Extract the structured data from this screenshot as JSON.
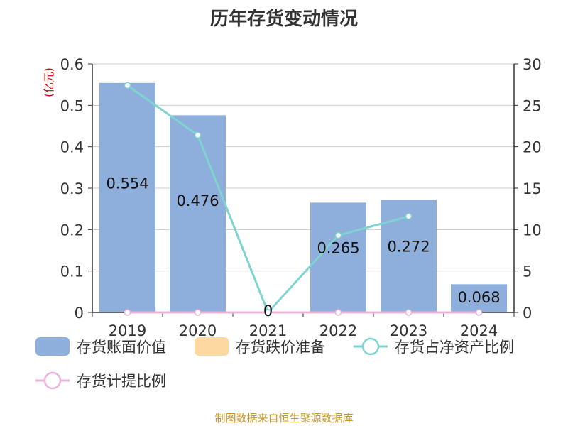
{
  "colors": {
    "bar": "#8eaedb",
    "provision": "#fdd8a0",
    "ratio_line": "#7fd3d0",
    "provision_ratio": "#e8b4dc",
    "unit_text": "#cc0000",
    "source_text": "#c8962e",
    "axis": "#333333",
    "grid": "#cccccc"
  },
  "chart_data": {
    "type": "bar",
    "title": "历年存货变动情况",
    "y_unit": "(亿元)",
    "categories": [
      "2019",
      "2020",
      "2021",
      "2022",
      "2023",
      "2024"
    ],
    "ylim_left": [
      0,
      0.6
    ],
    "yticks_left": [
      "0",
      "0.1",
      "0.2",
      "0.3",
      "0.4",
      "0.5",
      "0.6"
    ],
    "ylim_right": [
      0,
      30
    ],
    "yticks_right": [
      "0",
      "5",
      "10",
      "15",
      "20",
      "25",
      "30"
    ],
    "grid": true,
    "legend_position": "bottom",
    "series": [
      {
        "name": "存货账面价值",
        "kind": "bar",
        "axis": "left",
        "values": [
          0.554,
          0.476,
          0,
          0.265,
          0.272,
          0.068
        ],
        "labels": [
          "0.554",
          "0.476",
          "0",
          "0.265",
          "0.272",
          "0.068"
        ]
      },
      {
        "name": "存货跌价准备",
        "kind": "bar",
        "axis": "left",
        "values": [
          0,
          0,
          0,
          0,
          0,
          0
        ]
      },
      {
        "name": "存货占净资产比例",
        "kind": "line",
        "axis": "right",
        "values": [
          27.4,
          21.4,
          0,
          9.3,
          11.6,
          null
        ]
      },
      {
        "name": "存货计提比例",
        "kind": "line",
        "axis": "right",
        "values": [
          0,
          0,
          0,
          0,
          0,
          0
        ]
      }
    ]
  },
  "footer": {
    "source": "制图数据来自恒生聚源数据库"
  }
}
